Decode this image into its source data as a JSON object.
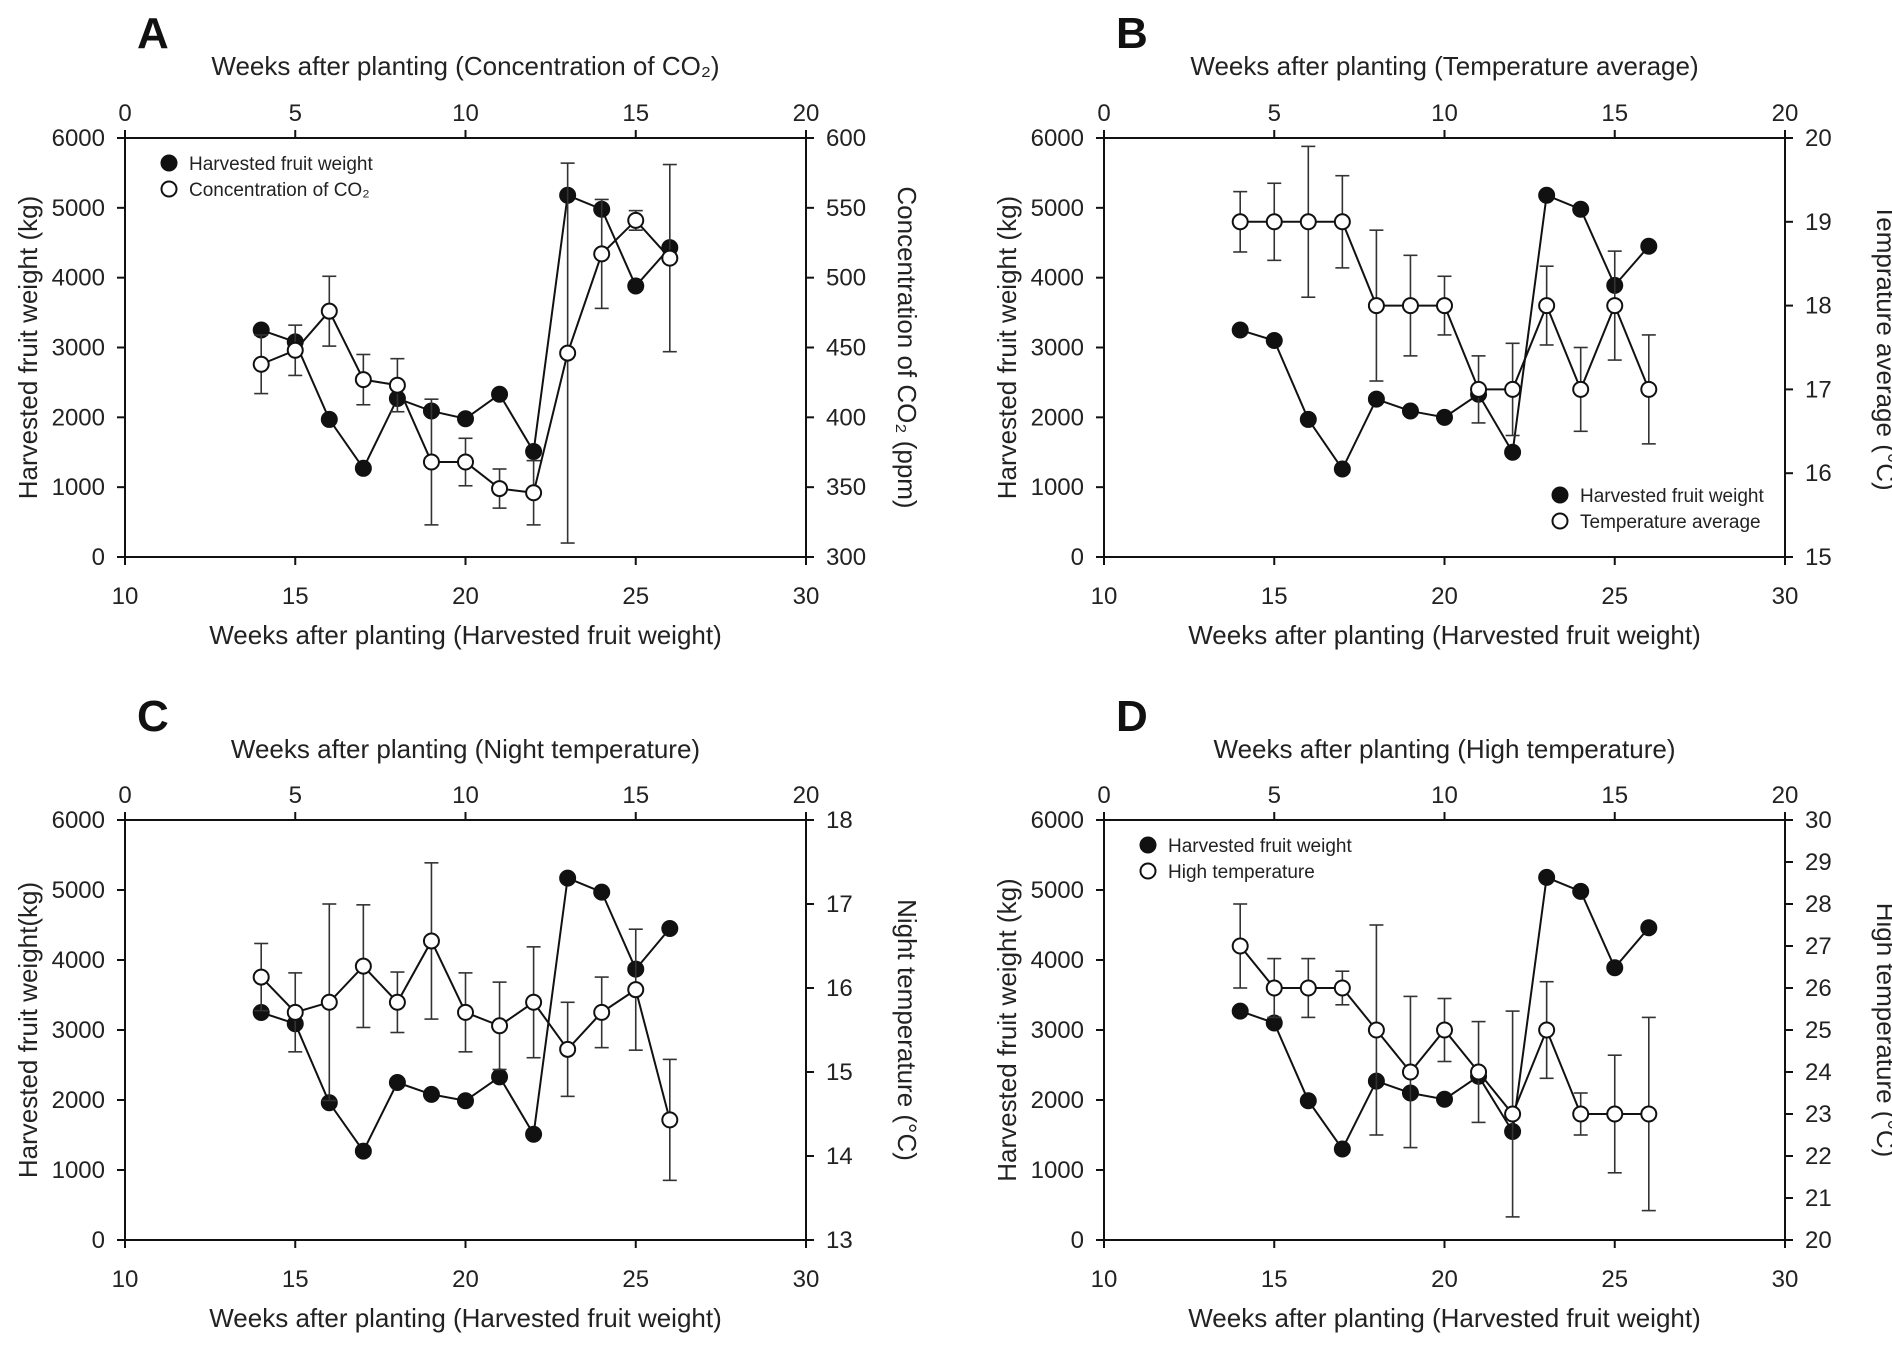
{
  "chart_data": [
    {
      "type": "line",
      "panel": "A",
      "title": "",
      "top_xlabel": "Weeks after planting (Concentration of CO₂)",
      "bottom_xlabel": "Weeks after planting (Harvested fruit weight)",
      "ylabel_left": "Harvested fruit weight (kg)",
      "ylabel_right": "Concentration of CO₂ (ppm)",
      "bottom_xlim": [
        10,
        30
      ],
      "top_xlim": [
        0,
        20
      ],
      "left_ylim": [
        0,
        6000
      ],
      "right_ylim": [
        300,
        600
      ],
      "bottom_xticks": [
        10,
        15,
        20,
        25,
        30
      ],
      "top_xticks": [
        0,
        5,
        10,
        15,
        20
      ],
      "left_yticks": [
        0,
        1000,
        2000,
        3000,
        4000,
        5000,
        6000
      ],
      "right_yticks": [
        300,
        350,
        400,
        450,
        500,
        550,
        600
      ],
      "legend_position": "top-left",
      "series": [
        {
          "name": "Harvested fruit weight",
          "marker": "filled-circle",
          "axis": "bottom-left",
          "x": [
            14,
            15,
            16,
            17,
            18,
            19,
            20,
            21,
            22,
            23,
            24,
            25,
            26
          ],
          "y": [
            3250,
            3080,
            1970,
            1270,
            2270,
            2090,
            1980,
            2330,
            1510,
            5180,
            4980,
            3880,
            4430
          ]
        },
        {
          "name": "Concentration of CO₂",
          "marker": "open-circle",
          "axis": "top-right",
          "x": [
            4,
            5,
            6,
            7,
            8,
            9,
            10,
            11,
            12,
            13,
            14,
            15,
            16
          ],
          "y": [
            438,
            448,
            476,
            427,
            423,
            368,
            368,
            349,
            346,
            446,
            517,
            541,
            514
          ],
          "err": [
            21,
            18,
            25,
            18,
            19,
            45,
            17,
            14,
            23,
            136,
            39,
            7,
            67
          ]
        }
      ]
    },
    {
      "type": "line",
      "panel": "B",
      "title": "",
      "top_xlabel": "Weeks after planting (Temperature average)",
      "bottom_xlabel": "Weeks after planting (Harvested fruit weight)",
      "ylabel_left": "Harvested fruit weight (kg)",
      "ylabel_right": "Temprature average (°C)",
      "bottom_xlim": [
        10,
        30
      ],
      "top_xlim": [
        0,
        20
      ],
      "left_ylim": [
        0,
        6000
      ],
      "right_ylim": [
        15,
        20
      ],
      "bottom_xticks": [
        10,
        15,
        20,
        25,
        30
      ],
      "top_xticks": [
        0,
        5,
        10,
        15,
        20
      ],
      "left_yticks": [
        0,
        1000,
        2000,
        3000,
        4000,
        5000,
        6000
      ],
      "right_yticks": [
        15,
        16,
        17,
        18,
        19,
        20
      ],
      "legend_position": "bottom-right",
      "series": [
        {
          "name": "Harvested fruit weight",
          "marker": "filled-circle",
          "axis": "bottom-left",
          "x": [
            14,
            15,
            16,
            17,
            18,
            19,
            20,
            21,
            22,
            23,
            24,
            25,
            26
          ],
          "y": [
            3250,
            3100,
            1970,
            1260,
            2260,
            2090,
            2000,
            2330,
            1500,
            5180,
            4980,
            3890,
            4450
          ]
        },
        {
          "name": "Temperature average",
          "marker": "open-circle",
          "axis": "top-right",
          "x": [
            4,
            5,
            6,
            7,
            8,
            9,
            10,
            11,
            12,
            13,
            14,
            15,
            16
          ],
          "y": [
            19,
            19,
            19,
            19,
            18,
            18,
            18,
            17,
            17,
            18,
            17,
            18,
            17
          ],
          "err": [
            0.36,
            0.46,
            0.9,
            0.55,
            0.9,
            0.6,
            0.35,
            0.4,
            0.55,
            0.47,
            0.5,
            0.65,
            0.65
          ]
        }
      ]
    },
    {
      "type": "line",
      "panel": "C",
      "title": "",
      "top_xlabel": "Weeks after planting (Night temperature)",
      "bottom_xlabel": "Weeks after planting (Harvested fruit weight)",
      "ylabel_left": "Harvested fruit weight(kg)",
      "ylabel_right": "Night temperature (°C)",
      "bottom_xlim": [
        10,
        30
      ],
      "top_xlim": [
        0,
        20
      ],
      "left_ylim": [
        0,
        6000
      ],
      "right_ylim": [
        13,
        18
      ],
      "bottom_xticks": [
        10,
        15,
        20,
        25,
        30
      ],
      "top_xticks": [
        0,
        5,
        10,
        15,
        20
      ],
      "left_yticks": [
        0,
        1000,
        2000,
        3000,
        4000,
        5000,
        6000
      ],
      "right_yticks": [
        13,
        14,
        15,
        16,
        17,
        18
      ],
      "legend_position": "none",
      "series": [
        {
          "name": "Harvested fruit weight",
          "marker": "filled-circle",
          "axis": "bottom-left",
          "x": [
            14,
            15,
            16,
            17,
            18,
            19,
            20,
            21,
            22,
            23,
            24,
            25,
            26
          ],
          "y": [
            3250,
            3090,
            1960,
            1270,
            2250,
            2080,
            1990,
            2330,
            1510,
            5170,
            4970,
            3870,
            4450
          ]
        },
        {
          "name": "Night temperature",
          "marker": "open-circle",
          "axis": "top-right",
          "x": [
            4,
            5,
            6,
            7,
            8,
            9,
            10,
            11,
            12,
            13,
            14,
            15,
            16
          ],
          "y": [
            16.13,
            15.71,
            15.83,
            16.26,
            15.83,
            16.56,
            15.71,
            15.55,
            15.83,
            15.27,
            15.71,
            15.98,
            14.43
          ],
          "err": [
            0.4,
            0.47,
            1.17,
            0.73,
            0.36,
            0.93,
            0.47,
            0.52,
            0.66,
            0.56,
            0.42,
            0.72,
            0.72
          ]
        }
      ]
    },
    {
      "type": "line",
      "panel": "D",
      "title": "",
      "top_xlabel": "Weeks after planting (High temperature)",
      "bottom_xlabel": "Weeks after planting (Harvested fruit weight)",
      "ylabel_left": "Harvested fruit weight (kg)",
      "ylabel_right": "High temperature (°C)",
      "bottom_xlim": [
        10,
        30
      ],
      "top_xlim": [
        0,
        20
      ],
      "left_ylim": [
        0,
        6000
      ],
      "right_ylim": [
        20,
        30
      ],
      "bottom_xticks": [
        10,
        15,
        20,
        25,
        30
      ],
      "top_xticks": [
        0,
        5,
        10,
        15,
        20
      ],
      "left_yticks": [
        0,
        1000,
        2000,
        3000,
        4000,
        5000,
        6000
      ],
      "right_yticks": [
        20,
        21,
        22,
        23,
        24,
        25,
        26,
        27,
        28,
        29,
        30
      ],
      "legend_position": "top-left",
      "series": [
        {
          "name": "Harvested fruit weight",
          "marker": "filled-circle",
          "axis": "bottom-left",
          "x": [
            14,
            15,
            16,
            17,
            18,
            19,
            20,
            21,
            22,
            23,
            24,
            25,
            26
          ],
          "y": [
            3270,
            3100,
            1990,
            1300,
            2270,
            2100,
            2010,
            2340,
            1550,
            5180,
            4980,
            3890,
            4460
          ]
        },
        {
          "name": "High temperature",
          "marker": "open-circle",
          "axis": "top-right",
          "x": [
            4,
            5,
            6,
            7,
            8,
            9,
            10,
            11,
            12,
            13,
            14,
            15,
            16
          ],
          "y": [
            27,
            26,
            26,
            26,
            25,
            24,
            25,
            24,
            23,
            25,
            23,
            23,
            23
          ],
          "err": [
            1,
            0.7,
            0.7,
            0.4,
            2.5,
            1.8,
            0.75,
            1.2,
            2.45,
            1.15,
            0.5,
            1.4,
            2.3
          ]
        }
      ]
    }
  ]
}
